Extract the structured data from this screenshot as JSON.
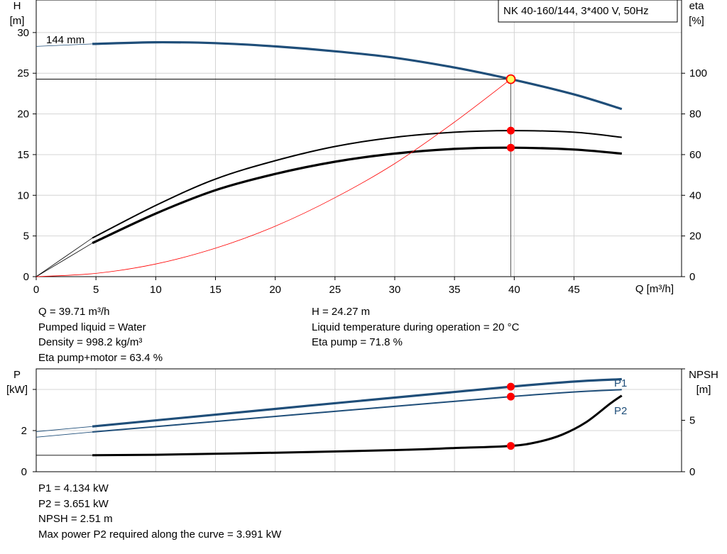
{
  "chart_data": [
    {
      "type": "line",
      "title": "NK 40-160/144, 3*400 V, 50Hz",
      "xlabel": "Q [m³/h]",
      "ylabel_left": [
        "H",
        "[m]"
      ],
      "ylabel_right": [
        "eta",
        "[%]"
      ],
      "xlim": [
        0,
        54
      ],
      "ylim_left": [
        0,
        34
      ],
      "ylim_right": [
        0,
        136
      ],
      "x_ticks": [
        0,
        5,
        10,
        15,
        20,
        25,
        30,
        35,
        40,
        45
      ],
      "y_ticks_left": [
        0,
        5,
        10,
        15,
        20,
        25,
        30
      ],
      "y_ticks_right": [
        0,
        20,
        40,
        60,
        80,
        100
      ],
      "grid": true,
      "curve_label": "144 mm",
      "colors": {
        "head": "#1f4e79",
        "eta": "#000000",
        "system": "#ff0000",
        "marker": "#ff0000",
        "duty_marker": "#ffff66"
      },
      "series": [
        {
          "axis": "left",
          "role": "head",
          "x": [
            0,
            4.7,
            10,
            15,
            20,
            25,
            30,
            35,
            39.71,
            45,
            49
          ],
          "y": [
            28.3,
            28.6,
            28.8,
            28.7,
            28.3,
            27.7,
            26.9,
            25.7,
            24.27,
            22.4,
            20.6
          ]
        },
        {
          "axis": "right",
          "role": "eta-pump",
          "x": [
            0,
            4.7,
            10,
            15,
            20,
            25,
            30,
            35,
            39.71,
            45,
            49
          ],
          "y": [
            0,
            19,
            35,
            48,
            57,
            64,
            68.5,
            71,
            71.8,
            71,
            68.5
          ]
        },
        {
          "axis": "right",
          "role": "eta-pump-motor",
          "x": [
            0,
            4.7,
            10,
            15,
            20,
            25,
            30,
            35,
            39.71,
            45,
            49
          ],
          "y": [
            0,
            16.5,
            31,
            42.5,
            50.5,
            56.5,
            60.5,
            62.8,
            63.4,
            62.5,
            60.5
          ]
        },
        {
          "axis": "left",
          "role": "system",
          "x": [
            0,
            5,
            10,
            15,
            20,
            25,
            30,
            35,
            39.71
          ],
          "y": [
            0,
            0.4,
            1.55,
            3.5,
            6.2,
            9.7,
            13.9,
            19.0,
            24.27
          ]
        }
      ],
      "duty_point": {
        "x": 39.71,
        "y": 24.27
      }
    },
    {
      "type": "line",
      "xlabel": "",
      "ylabel_left": [
        "P",
        "[kW]"
      ],
      "ylabel_right": [
        "NPSH",
        "[m]"
      ],
      "xlim": [
        0,
        54
      ],
      "ylim_left": [
        0,
        5
      ],
      "ylim_right": [
        0,
        10
      ],
      "x_ticks": [
        5,
        10,
        15,
        20,
        25,
        30,
        35,
        40,
        45
      ],
      "y_ticks_left_labels": [
        0,
        2
      ],
      "y_ticks_left_marks": [
        0,
        2,
        4
      ],
      "y_ticks_right_labels": [
        0,
        5
      ],
      "y_ticks_right_marks": [
        0,
        5,
        10
      ],
      "grid": true,
      "colors": {
        "power": "#1f4e79",
        "npsh": "#000000",
        "marker": "#ff0000"
      },
      "series": [
        {
          "name": "P1",
          "axis": "left",
          "role": "p1",
          "x": [
            0,
            4.7,
            39.71,
            49
          ],
          "y": [
            1.95,
            2.2,
            4.134,
            4.5
          ]
        },
        {
          "name": "P2",
          "axis": "left",
          "role": "p2",
          "x": [
            0,
            4.7,
            39.71,
            49
          ],
          "y": [
            1.68,
            1.93,
            3.651,
            3.991
          ]
        },
        {
          "axis": "right",
          "role": "npsh",
          "x": [
            0,
            4.7,
            10,
            20,
            30,
            35,
            39.71,
            42,
            44,
            46,
            48,
            49
          ],
          "y": [
            1.6,
            1.6,
            1.65,
            1.85,
            2.1,
            2.3,
            2.51,
            2.9,
            3.6,
            4.8,
            6.6,
            7.4
          ]
        }
      ],
      "markers": [
        {
          "axis": "left",
          "x": 39.71,
          "y": 4.134
        },
        {
          "axis": "left",
          "x": 39.71,
          "y": 3.651
        },
        {
          "axis": "right",
          "x": 39.71,
          "y": 2.51
        }
      ]
    }
  ],
  "info_upper_left": [
    "Q = 39.71 m³/h",
    "Pumped liquid = Water",
    "Density = 998.2 kg/m³",
    "Eta pump+motor = 63.4 %"
  ],
  "info_upper_right": [
    "H = 24.27 m",
    "Liquid temperature during operation = 20 °C",
    "Eta pump = 71.8 %"
  ],
  "info_lower": [
    "P1 = 4.134 kW",
    "P2 = 3.651 kW",
    "NPSH = 2.51 m",
    "Max power P2 required along the curve = 3.991 kW"
  ]
}
